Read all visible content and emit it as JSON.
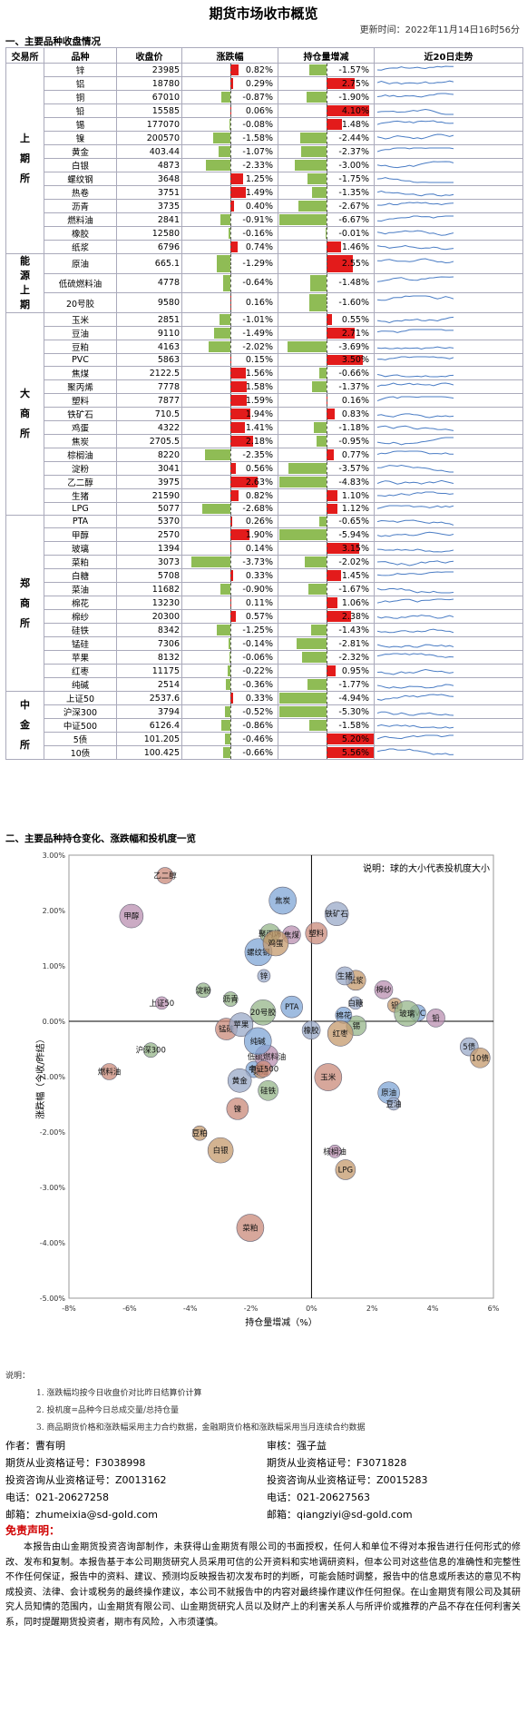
{
  "page_title": "期货市场收市概览",
  "update_time": "更新时间：2022年11月14日16时56分",
  "section1_title": "一、主要品种收盘情况",
  "section2_title": "二、主要品种持仓变化、涨跌幅和投机度一览",
  "table_headers": [
    "交易所",
    "品种",
    "收盘价",
    "涨跌幅",
    "持仓量增减",
    "近20日走势"
  ],
  "colors": {
    "up": "#e31b1b",
    "down": "#8fbc55",
    "spark": "#4a7cc4",
    "bubble": "#8899bb"
  },
  "groups": [
    {
      "exchange": "上期所",
      "rows": [
        {
          "name": "锌",
          "price": "23985",
          "chg": "0.82%",
          "chg_v": 0.82,
          "oi": "-1.57%",
          "oi_v": -1.57
        },
        {
          "name": "铝",
          "price": "18780",
          "chg": "0.29%",
          "chg_v": 0.29,
          "oi": "2.75%",
          "oi_v": 2.75
        },
        {
          "name": "铜",
          "price": "67010",
          "chg": "-0.87%",
          "chg_v": -0.87,
          "oi": "-1.90%",
          "oi_v": -1.9
        },
        {
          "name": "铅",
          "price": "15585",
          "chg": "0.06%",
          "chg_v": 0.06,
          "oi": "4.10%",
          "oi_v": 4.1
        },
        {
          "name": "锡",
          "price": "177070",
          "chg": "-0.08%",
          "chg_v": -0.08,
          "oi": "1.48%",
          "oi_v": 1.48
        },
        {
          "name": "镍",
          "price": "200570",
          "chg": "-1.58%",
          "chg_v": -1.58,
          "oi": "-2.44%",
          "oi_v": -2.44
        },
        {
          "name": "黄金",
          "price": "403.44",
          "chg": "-1.07%",
          "chg_v": -1.07,
          "oi": "-2.37%",
          "oi_v": -2.37
        },
        {
          "name": "白银",
          "price": "4873",
          "chg": "-2.33%",
          "chg_v": -2.33,
          "oi": "-3.00%",
          "oi_v": -3.0
        },
        {
          "name": "螺纹钢",
          "price": "3648",
          "chg": "1.25%",
          "chg_v": 1.25,
          "oi": "-1.75%",
          "oi_v": -1.75
        },
        {
          "name": "热卷",
          "price": "3751",
          "chg": "1.49%",
          "chg_v": 1.49,
          "oi": "-1.35%",
          "oi_v": -1.35
        },
        {
          "name": "沥青",
          "price": "3735",
          "chg": "0.40%",
          "chg_v": 0.4,
          "oi": "-2.67%",
          "oi_v": -2.67
        },
        {
          "name": "燃料油",
          "price": "2841",
          "chg": "-0.91%",
          "chg_v": -0.91,
          "oi": "-6.67%",
          "oi_v": -6.67
        },
        {
          "name": "橡胶",
          "price": "12580",
          "chg": "-0.16%",
          "chg_v": -0.16,
          "oi": "-0.01%",
          "oi_v": -0.01
        },
        {
          "name": "纸浆",
          "price": "6796",
          "chg": "0.74%",
          "chg_v": 0.74,
          "oi": "1.46%",
          "oi_v": 1.46
        }
      ]
    },
    {
      "exchange": "能源上期",
      "rows": [
        {
          "name": "原油",
          "price": "665.1",
          "chg": "-1.29%",
          "chg_v": -1.29,
          "oi": "2.55%",
          "oi_v": 2.55
        },
        {
          "name": "低硫燃料油",
          "price": "4778",
          "chg": "-0.64%",
          "chg_v": -0.64,
          "oi": "-1.48%",
          "oi_v": -1.48
        },
        {
          "name": "20号胶",
          "price": "9580",
          "chg": "0.16%",
          "chg_v": 0.16,
          "oi": "-1.60%",
          "oi_v": -1.6
        }
      ]
    },
    {
      "exchange": "大商所",
      "rows": [
        {
          "name": "玉米",
          "price": "2851",
          "chg": "-1.01%",
          "chg_v": -1.01,
          "oi": "0.55%",
          "oi_v": 0.55
        },
        {
          "name": "豆油",
          "price": "9110",
          "chg": "-1.49%",
          "chg_v": -1.49,
          "oi": "2.71%",
          "oi_v": 2.71
        },
        {
          "name": "豆粕",
          "price": "4163",
          "chg": "-2.02%",
          "chg_v": -2.02,
          "oi": "-3.69%",
          "oi_v": -3.69
        },
        {
          "name": "PVC",
          "price": "5863",
          "chg": "0.15%",
          "chg_v": 0.15,
          "oi": "3.50%",
          "oi_v": 3.5
        },
        {
          "name": "焦煤",
          "price": "2122.5",
          "chg": "1.56%",
          "chg_v": 1.56,
          "oi": "-0.66%",
          "oi_v": -0.66
        },
        {
          "name": "聚丙烯",
          "price": "7778",
          "chg": "1.58%",
          "chg_v": 1.58,
          "oi": "-1.37%",
          "oi_v": -1.37
        },
        {
          "name": "塑料",
          "price": "7877",
          "chg": "1.59%",
          "chg_v": 1.59,
          "oi": "0.16%",
          "oi_v": 0.16
        },
        {
          "name": "铁矿石",
          "price": "710.5",
          "chg": "1.94%",
          "chg_v": 1.94,
          "oi": "0.83%",
          "oi_v": 0.83
        },
        {
          "name": "鸡蛋",
          "price": "4322",
          "chg": "1.41%",
          "chg_v": 1.41,
          "oi": "-1.18%",
          "oi_v": -1.18
        },
        {
          "name": "焦炭",
          "price": "2705.5",
          "chg": "2.18%",
          "chg_v": 2.18,
          "oi": "-0.95%",
          "oi_v": -0.95
        },
        {
          "name": "棕榈油",
          "price": "8220",
          "chg": "-2.35%",
          "chg_v": -2.35,
          "oi": "0.77%",
          "oi_v": 0.77
        },
        {
          "name": "淀粉",
          "price": "3041",
          "chg": "0.56%",
          "chg_v": 0.56,
          "oi": "-3.57%",
          "oi_v": -3.57
        },
        {
          "name": "乙二醇",
          "price": "3975",
          "chg": "2.63%",
          "chg_v": 2.63,
          "oi": "-4.83%",
          "oi_v": -4.83
        },
        {
          "name": "生猪",
          "price": "21590",
          "chg": "0.82%",
          "chg_v": 0.82,
          "oi": "1.10%",
          "oi_v": 1.1
        },
        {
          "name": "LPG",
          "price": "5077",
          "chg": "-2.68%",
          "chg_v": -2.68,
          "oi": "1.12%",
          "oi_v": 1.12
        }
      ]
    },
    {
      "exchange": "郑商所",
      "rows": [
        {
          "name": "PTA",
          "price": "5370",
          "chg": "0.26%",
          "chg_v": 0.26,
          "oi": "-0.65%",
          "oi_v": -0.65
        },
        {
          "name": "甲醇",
          "price": "2570",
          "chg": "1.90%",
          "chg_v": 1.9,
          "oi": "-5.94%",
          "oi_v": -5.94
        },
        {
          "name": "玻璃",
          "price": "1394",
          "chg": "0.14%",
          "chg_v": 0.14,
          "oi": "3.15%",
          "oi_v": 3.15
        },
        {
          "name": "菜粕",
          "price": "3073",
          "chg": "-3.73%",
          "chg_v": -3.73,
          "oi": "-2.02%",
          "oi_v": -2.02
        },
        {
          "name": "白糖",
          "price": "5708",
          "chg": "0.33%",
          "chg_v": 0.33,
          "oi": "1.45%",
          "oi_v": 1.45
        },
        {
          "name": "菜油",
          "price": "11682",
          "chg": "-0.90%",
          "chg_v": -0.9,
          "oi": "-1.67%",
          "oi_v": -1.67
        },
        {
          "name": "棉花",
          "price": "13230",
          "chg": "0.11%",
          "chg_v": 0.11,
          "oi": "1.06%",
          "oi_v": 1.06
        },
        {
          "name": "棉纱",
          "price": "20300",
          "chg": "0.57%",
          "chg_v": 0.57,
          "oi": "2.38%",
          "oi_v": 2.38
        },
        {
          "name": "硅铁",
          "price": "8342",
          "chg": "-1.25%",
          "chg_v": -1.25,
          "oi": "-1.43%",
          "oi_v": -1.43
        },
        {
          "name": "锰硅",
          "price": "7306",
          "chg": "-0.14%",
          "chg_v": -0.14,
          "oi": "-2.81%",
          "oi_v": -2.81
        },
        {
          "name": "苹果",
          "price": "8132",
          "chg": "-0.06%",
          "chg_v": -0.06,
          "oi": "-2.32%",
          "oi_v": -2.32
        },
        {
          "name": "红枣",
          "price": "11175",
          "chg": "-0.22%",
          "chg_v": -0.22,
          "oi": "0.95%",
          "oi_v": 0.95
        },
        {
          "name": "纯碱",
          "price": "2514",
          "chg": "-0.36%",
          "chg_v": -0.36,
          "oi": "-1.77%",
          "oi_v": -1.77
        }
      ]
    },
    {
      "exchange": "中金所",
      "rows": [
        {
          "name": "上证50",
          "price": "2537.6",
          "chg": "0.33%",
          "chg_v": 0.33,
          "oi": "-4.94%",
          "oi_v": -4.94
        },
        {
          "name": "沪深300",
          "price": "3794",
          "chg": "-0.52%",
          "chg_v": -0.52,
          "oi": "-5.30%",
          "oi_v": -5.3
        },
        {
          "name": "中证500",
          "price": "6126.4",
          "chg": "-0.86%",
          "chg_v": -0.86,
          "oi": "-1.58%",
          "oi_v": -1.58
        },
        {
          "name": "5债",
          "price": "101.205",
          "chg": "-0.46%",
          "chg_v": -0.46,
          "oi": "5.20%",
          "oi_v": 5.2
        },
        {
          "name": "10债",
          "price": "100.425",
          "chg": "-0.66%",
          "chg_v": -0.66,
          "oi": "5.56%",
          "oi_v": 5.56
        }
      ]
    }
  ],
  "chart_data": {
    "type": "scatter",
    "title": "",
    "xlabel": "持仓量增减（%）",
    "ylabel": "涨跌幅（今收/昨结）",
    "xlim": [
      -8,
      6
    ],
    "ylim": [
      -5,
      3
    ],
    "x_ticks": [
      "-8%",
      "-6%",
      "-4%",
      "-2%",
      "0%",
      "2%",
      "4%",
      "6%"
    ],
    "y_ticks": [
      "3.00%",
      "2.00%",
      "1.00%",
      "0.00%",
      "-1.00%",
      "-2.00%",
      "-3.00%",
      "-4.00%",
      "-5.00%"
    ],
    "annotation": "说明：球的大小代表投机度大小",
    "points": [
      {
        "label": "锌",
        "x": -1.57,
        "y": 0.82
      },
      {
        "label": "铝",
        "x": 2.75,
        "y": 0.29
      },
      {
        "label": "铜",
        "x": -1.9,
        "y": -0.87
      },
      {
        "label": "铅",
        "x": 4.1,
        "y": 0.06
      },
      {
        "label": "锡",
        "x": 1.48,
        "y": -0.08
      },
      {
        "label": "镍",
        "x": -2.44,
        "y": -1.58
      },
      {
        "label": "黄金",
        "x": -2.37,
        "y": -1.07
      },
      {
        "label": "白银",
        "x": -3.0,
        "y": -2.33
      },
      {
        "label": "螺纹钢",
        "x": -1.75,
        "y": 1.25
      },
      {
        "label": "热卷",
        "x": -1.35,
        "y": 1.49
      },
      {
        "label": "沥青",
        "x": -2.67,
        "y": 0.4
      },
      {
        "label": "燃料油",
        "x": -6.67,
        "y": -0.91
      },
      {
        "label": "橡胶",
        "x": -0.01,
        "y": -0.16
      },
      {
        "label": "纸浆",
        "x": 1.46,
        "y": 0.74
      },
      {
        "label": "原油",
        "x": 2.55,
        "y": -1.29
      },
      {
        "label": "低硫燃料油",
        "x": -1.48,
        "y": -0.64
      },
      {
        "label": "20号胶",
        "x": -1.6,
        "y": 0.16
      },
      {
        "label": "玉米",
        "x": 0.55,
        "y": -1.01
      },
      {
        "label": "豆油",
        "x": 2.71,
        "y": -1.49
      },
      {
        "label": "豆粕",
        "x": -3.69,
        "y": -2.02
      },
      {
        "label": "PVC",
        "x": 3.5,
        "y": 0.15
      },
      {
        "label": "焦煤",
        "x": -0.66,
        "y": 1.56
      },
      {
        "label": "聚丙烯",
        "x": -1.37,
        "y": 1.58
      },
      {
        "label": "塑料",
        "x": 0.16,
        "y": 1.59
      },
      {
        "label": "铁矿石",
        "x": 0.83,
        "y": 1.94
      },
      {
        "label": "鸡蛋",
        "x": -1.18,
        "y": 1.41
      },
      {
        "label": "焦炭",
        "x": -0.95,
        "y": 2.18
      },
      {
        "label": "棕榈油",
        "x": 0.77,
        "y": -2.35
      },
      {
        "label": "淀粉",
        "x": -3.57,
        "y": 0.56
      },
      {
        "label": "乙二醇",
        "x": -4.83,
        "y": 2.63
      },
      {
        "label": "生猪",
        "x": 1.1,
        "y": 0.82
      },
      {
        "label": "LPG",
        "x": 1.12,
        "y": -2.68
      },
      {
        "label": "PTA",
        "x": -0.65,
        "y": 0.26
      },
      {
        "label": "甲醇",
        "x": -5.94,
        "y": 1.9
      },
      {
        "label": "玻璃",
        "x": 3.15,
        "y": 0.14
      },
      {
        "label": "菜粕",
        "x": -2.02,
        "y": -3.73
      },
      {
        "label": "白糖",
        "x": 1.45,
        "y": 0.33
      },
      {
        "label": "菜油",
        "x": -1.67,
        "y": -0.9
      },
      {
        "label": "棉花",
        "x": 1.06,
        "y": 0.11
      },
      {
        "label": "棉纱",
        "x": 2.38,
        "y": 0.57
      },
      {
        "label": "硅铁",
        "x": -1.43,
        "y": -1.25
      },
      {
        "label": "锰硅",
        "x": -2.81,
        "y": -0.14
      },
      {
        "label": "苹果",
        "x": -2.32,
        "y": -0.06
      },
      {
        "label": "红枣",
        "x": 0.95,
        "y": -0.22
      },
      {
        "label": "纯碱",
        "x": -1.77,
        "y": -0.36
      },
      {
        "label": "上证50",
        "x": -4.94,
        "y": 0.33
      },
      {
        "label": "沪深300",
        "x": -5.3,
        "y": -0.52
      },
      {
        "label": "中证500",
        "x": -1.58,
        "y": -0.86
      },
      {
        "label": "5债",
        "x": 5.2,
        "y": -0.46
      },
      {
        "label": "10债",
        "x": 5.56,
        "y": -0.66
      }
    ]
  },
  "notes": [
    "说明：",
    "1. 涨跌幅均按今日收盘价对比昨日结算价计算",
    "2. 投机度=品种今日总成交量/总持仓量",
    "3. 商品期货价格和涨跌幅采用主力合约数据，金融期货价格和涨跌幅采用当月连续合约数据"
  ],
  "author_left": {
    "name": "作者：曹有明",
    "qual": "期货从业资格证号：F3038998",
    "invest": "投资咨询从业资格证号：Z0013162",
    "phone": "电话：021-20627258",
    "email": "邮箱：zhumeixia@sd-gold.com"
  },
  "author_right": {
    "name": "审核：强子益",
    "qual": "期货从业资格证号：F3071828",
    "invest": "投资咨询从业资格证号：Z0015283",
    "phone": "电话：021-20627563",
    "email": "邮箱：qiangziyi@sd-gold.com"
  },
  "disclaimer_title": "免责声明：",
  "disclaimer": "本报告由山金期货投资咨询部制作，未获得山金期货有限公司的书面授权，任何人和单位不得对本报告进行任何形式的修改、发布和复制。本报告基于本公司期货研究人员采用可信的公开资料和实地调研资料，但本公司对这些信息的准确性和完整性不作任何保证，报告中的资料、建议、预测均反映报告初次发布时的判断，可能会随时调整，报告中的信息或所表达的意见不构成投资、法律、会计或税务的最终操作建议，本公司不就报告中的内容对最终操作建议作任何担保。在山金期货有限公司及其研究人员知情的范围内，山金期货有限公司、山金期货研究人员以及财产上的利害关系人与所评价或推荐的产品不存在任何利害关系，同时提醒期货投资者，期市有风险，入市须谨慎。"
}
